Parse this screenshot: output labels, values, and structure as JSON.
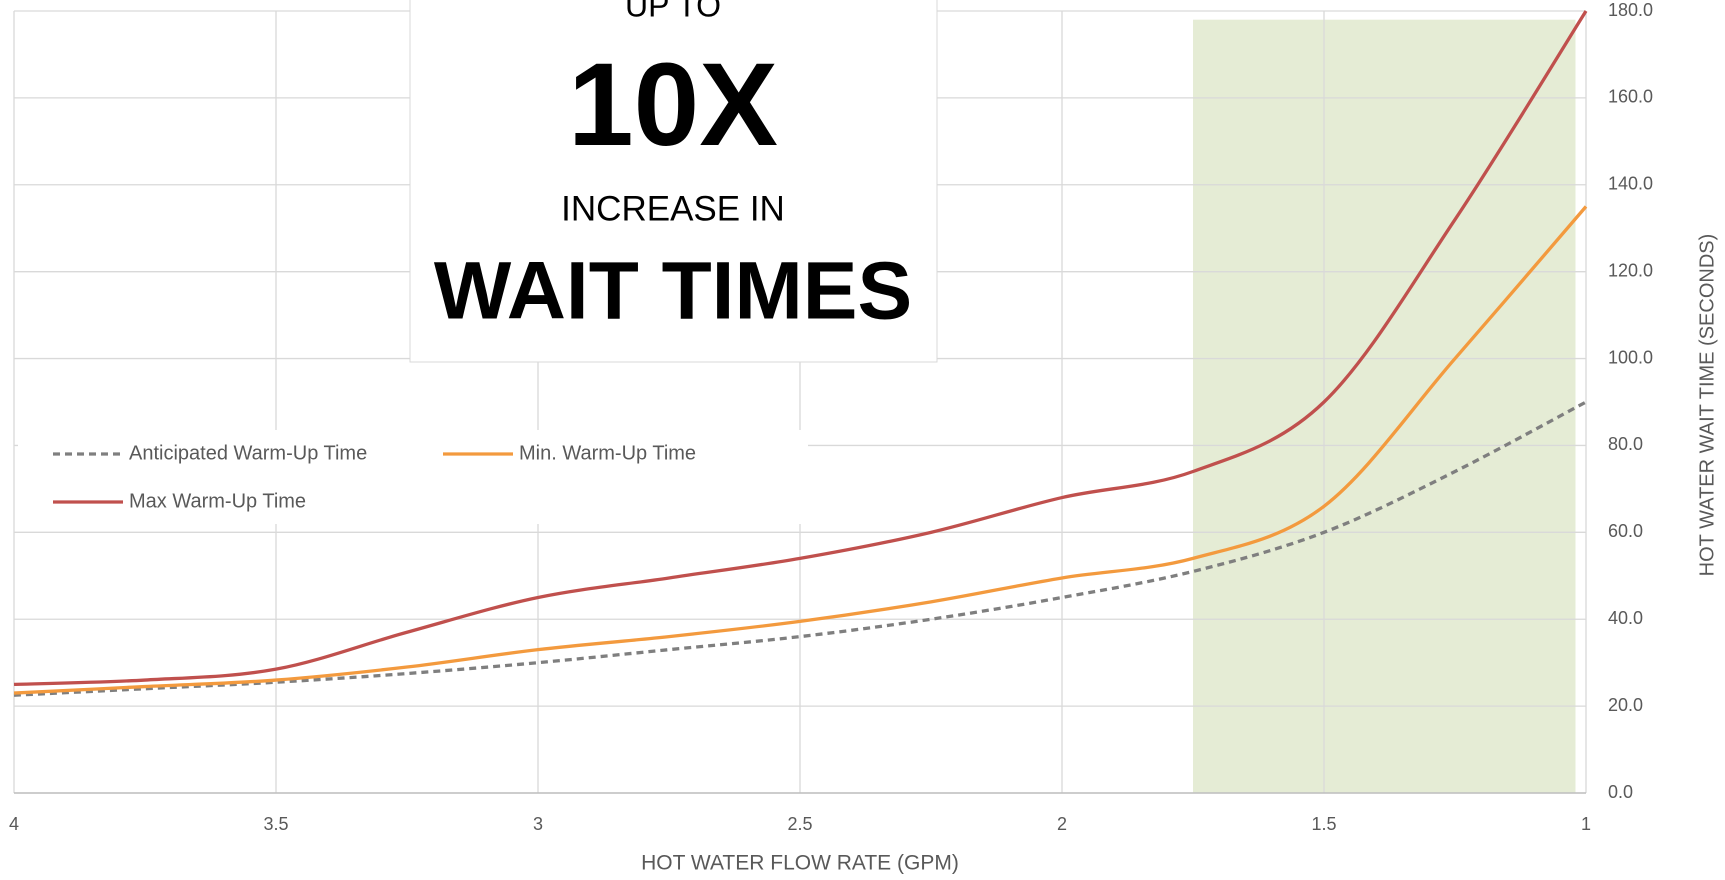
{
  "chart_data": {
    "type": "line",
    "x_label": "HOT WATER FLOW RATE (GPM)",
    "y_label": "HOT WATER WAIT TIME (SECONDS)",
    "annotation": {
      "line1": "UP TO",
      "line2": "10X",
      "line3": "INCREASE IN",
      "line4": "WAIT TIMES"
    },
    "x": [
      4,
      3.75,
      3.5,
      3.25,
      3,
      2.75,
      2.5,
      2.25,
      2,
      1.75,
      1.5,
      1.25,
      1
    ],
    "series": [
      {
        "name": "Anticipated Warm-Up Time",
        "color": "#7f7f7f",
        "dashed": true,
        "values": [
          22.5,
          24,
          25.5,
          27.5,
          30,
          33,
          36,
          40,
          45,
          51,
          60,
          74,
          90
        ]
      },
      {
        "name": "Min. Warm-Up Time",
        "color": "#f39a3e",
        "dashed": false,
        "values": [
          23,
          24.5,
          26,
          29,
          33,
          36,
          39.5,
          44,
          49.5,
          54,
          66,
          100,
          135
        ]
      },
      {
        "name": "Max Warm-Up Time",
        "color": "#c0504d",
        "dashed": false,
        "values": [
          25,
          26,
          28.5,
          37,
          45,
          49.5,
          54,
          60,
          68,
          74,
          90,
          132,
          180
        ]
      }
    ],
    "highlight": {
      "x": [
        1.75,
        1.02
      ],
      "y": [
        0,
        178
      ],
      "color": "#e2ead0"
    },
    "xlim": [
      4,
      1
    ],
    "xticks": [
      4,
      3.5,
      3,
      2.5,
      2,
      1.5,
      1
    ],
    "ylim": [
      0,
      180
    ],
    "yticks": [
      {
        "value": 0,
        "label": "0.0"
      },
      {
        "value": 20,
        "label": "20.0"
      },
      {
        "value": 40,
        "label": "40.0"
      },
      {
        "value": 60,
        "label": "60.0"
      },
      {
        "value": 80,
        "label": "80.0"
      },
      {
        "value": 100,
        "label": "100.0"
      },
      {
        "value": 120,
        "label": "120.0"
      },
      {
        "value": 140,
        "label": "140.0"
      },
      {
        "value": 160,
        "label": "160.0"
      },
      {
        "value": 180,
        "label": "180.0"
      }
    ],
    "y_axis_side": "right",
    "grid": true,
    "legend": "left"
  }
}
